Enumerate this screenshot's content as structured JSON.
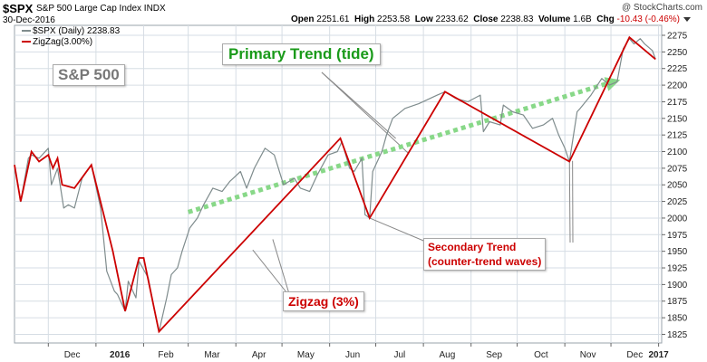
{
  "header": {
    "symbol": "$SPX",
    "company": "S&P 500 Large Cap Index  INDX",
    "date": "30-Dec-2016",
    "open_label": "Open",
    "open": "2251.61",
    "high_label": "High",
    "high": "2253.58",
    "low_label": "Low",
    "low": "2233.62",
    "close_label": "Close",
    "close": "2238.83",
    "volume_label": "Volume",
    "volume": "1.6B",
    "chg_label": "Chg",
    "chg": "-10.43 (-0.46%)",
    "watermark": "@ StockCharts.com"
  },
  "legend": [
    {
      "label": "$SPX (Daily) 2238.83",
      "color": "#7f8c8d"
    },
    {
      "label": "ZigZag(3.00%)",
      "color": "#cc0000"
    }
  ],
  "annotations": {
    "primary": "Primary Trend (tide)",
    "sp500": "S&P 500",
    "zigzag": "Zigzag (3%)",
    "secondary_line1": "Secondary Trend",
    "secondary_line2": "(counter-trend waves)"
  },
  "colors": {
    "price": "#7f8c8d",
    "zigzag": "#cc0000",
    "trend": "#88d888",
    "grid": "#d6dde4"
  },
  "chart_data": {
    "type": "line",
    "ylim": [
      1812,
      2290
    ],
    "y_ticks": [
      1825,
      1850,
      1875,
      1900,
      1925,
      1950,
      1975,
      2000,
      2025,
      2050,
      2075,
      2100,
      2125,
      2150,
      2175,
      2200,
      2225,
      2250,
      2275
    ],
    "x_tick_labels": [
      "Dec",
      "2016",
      "Feb",
      "Mar",
      "Apr",
      "May",
      "Jun",
      "Jul",
      "Aug",
      "Sep",
      "Oct",
      "Nov",
      "Dec",
      "2017"
    ],
    "x_tick_dates": [
      "2015-12-01",
      "2016-01-01",
      "2016-02-01",
      "2016-03-01",
      "2016-04-01",
      "2016-05-01",
      "2016-06-01",
      "2016-07-01",
      "2016-08-01",
      "2016-09-01",
      "2016-10-01",
      "2016-11-01",
      "2016-12-01",
      "2017-01-01"
    ],
    "x_range": [
      "2015-11-09",
      "2017-01-03"
    ],
    "grid": true,
    "series": [
      {
        "name": "$SPX (Daily) 2238.83",
        "style": "line",
        "x": [
          "2015-11-09",
          "2015-11-13",
          "2015-11-18",
          "2015-11-20",
          "2015-11-25",
          "2015-12-01",
          "2015-12-03",
          "2015-12-07",
          "2015-12-11",
          "2015-12-14",
          "2015-12-18",
          "2015-12-23",
          "2015-12-29",
          "2016-01-04",
          "2016-01-08",
          "2016-01-13",
          "2016-01-15",
          "2016-01-20",
          "2016-01-22",
          "2016-01-27",
          "2016-01-29",
          "2016-02-04",
          "2016-02-09",
          "2016-02-11",
          "2016-02-16",
          "2016-02-19",
          "2016-02-23",
          "2016-02-26",
          "2016-03-02",
          "2016-03-07",
          "2016-03-11",
          "2016-03-17",
          "2016-03-23",
          "2016-03-28",
          "2016-04-04",
          "2016-04-08",
          "2016-04-13",
          "2016-04-20",
          "2016-04-26",
          "2016-05-02",
          "2016-05-09",
          "2016-05-13",
          "2016-05-19",
          "2016-05-24",
          "2016-05-31",
          "2016-06-06",
          "2016-06-09",
          "2016-06-14",
          "2016-06-17",
          "2016-06-22",
          "2016-06-24",
          "2016-06-27",
          "2016-06-29",
          "2016-07-05",
          "2016-07-08",
          "2016-07-12",
          "2016-07-20",
          "2016-07-29",
          "2016-08-10",
          "2016-08-15",
          "2016-08-22",
          "2016-08-30",
          "2016-09-07",
          "2016-09-09",
          "2016-09-13",
          "2016-09-20",
          "2016-09-22",
          "2016-09-28",
          "2016-10-05",
          "2016-10-11",
          "2016-10-18",
          "2016-10-24",
          "2016-10-28",
          "2016-11-01",
          "2016-11-04",
          "2016-11-07",
          "2016-11-09",
          "2016-11-11",
          "2016-11-18",
          "2016-11-25",
          "2016-11-30",
          "2016-12-05",
          "2016-12-09",
          "2016-12-13",
          "2016-12-16",
          "2016-12-20",
          "2016-12-23",
          "2016-12-28",
          "2016-12-30"
        ],
        "y": [
          2080,
          2025,
          2090,
          2095,
          2090,
          2105,
          2050,
          2075,
          2015,
          2020,
          2015,
          2060,
          2080,
          2015,
          1920,
          1890,
          1885,
          1860,
          1905,
          1880,
          1935,
          1910,
          1850,
          1829,
          1880,
          1915,
          1925,
          1950,
          1985,
          2000,
          2020,
          2045,
          2040,
          2055,
          2070,
          2045,
          2075,
          2105,
          2095,
          2050,
          2060,
          2045,
          2040,
          2065,
          2095,
          2100,
          2115,
          2075,
          2070,
          2090,
          2005,
          2000,
          2070,
          2100,
          2125,
          2150,
          2165,
          2172,
          2185,
          2190,
          2180,
          2175,
          2185,
          2130,
          2145,
          2140,
          2170,
          2160,
          2155,
          2135,
          2140,
          2150,
          2125,
          2105,
          2085,
          2130,
          2160,
          2165,
          2185,
          2210,
          2200,
          2205,
          2255,
          2270,
          2262,
          2270,
          2262,
          2252,
          2239
        ]
      },
      {
        "name": "ZigZag(3.00%)",
        "style": "line",
        "x": [
          "2015-11-09",
          "2015-11-13",
          "2015-11-20",
          "2015-11-25",
          "2015-12-01",
          "2015-12-04",
          "2015-12-07",
          "2015-12-10",
          "2015-12-18",
          "2015-12-29",
          "2016-01-12",
          "2016-01-20",
          "2016-01-29",
          "2016-02-01",
          "2016-02-11",
          "2016-06-08",
          "2016-06-27",
          "2016-08-15",
          "2016-11-04",
          "2016-12-13",
          "2016-12-30"
        ],
        "y": [
          2080,
          2025,
          2100,
          2085,
          2095,
          2075,
          2090,
          2050,
          2045,
          2080,
          1950,
          1860,
          1940,
          1940,
          1829,
          2120,
          2000,
          2190,
          2085,
          2272,
          2239
        ]
      },
      {
        "name": "",
        "style": "trend",
        "x": [
          "2016-03-01",
          "2016-12-07"
        ],
        "y": [
          2009,
          2208
        ]
      }
    ]
  }
}
